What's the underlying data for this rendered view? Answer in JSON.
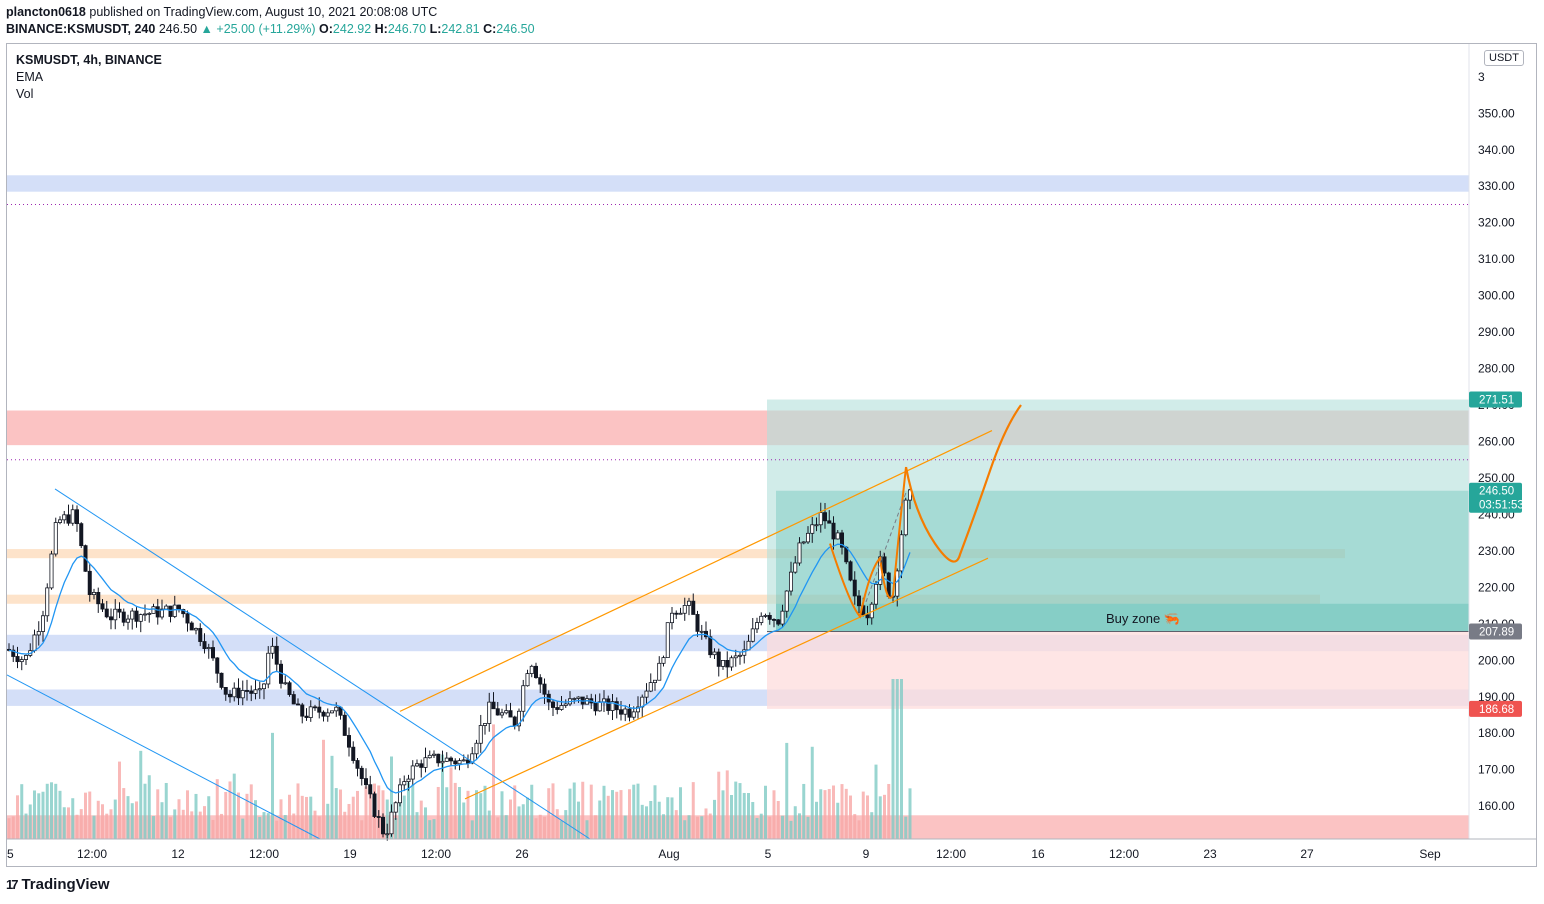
{
  "header": {
    "author": "plancton0618",
    "published": "published on TradingView.com, August 10, 2021 20:08:08 UTC",
    "symbol_line": "BINANCE:KSMUSDT, 240",
    "last": "246.50",
    "change": "▲ +25.00 (+11.29%)",
    "o_label": "O:",
    "o_value": "242.92",
    "h_label": "H:",
    "h_value": "246.70",
    "l_label": "L:",
    "l_value": "242.81",
    "c_label": "C:",
    "c_value": "246.50"
  },
  "legend": {
    "title": "KSMUSDT, 4h, BINANCE",
    "ema": "EMA",
    "vol": "Vol"
  },
  "currency": "USDT",
  "branding": "TradingView",
  "annotation": "Buy zone 🦐",
  "colors": {
    "up": "#26a69a",
    "down": "#ef5350",
    "ema": "#2196f3",
    "channel": "#ff9800",
    "projection": "#f57c00",
    "blue_zone": "#cfdcf7",
    "orange_zone": "#fde0c4",
    "red_zone": "#fbbcbc",
    "target_zone": "#b2dfdb",
    "stop_zone": "#fddcdc"
  },
  "chart_data": {
    "type": "candlestick",
    "ylim": [
      151,
      369
    ],
    "y_ticks": [
      "160.00",
      "170.00",
      "180.00",
      "190.00",
      "200.00",
      "210.00",
      "220.00",
      "230.00",
      "240.00",
      "250.00",
      "260.00",
      "270.00",
      "280.00",
      "290.00",
      "300.00",
      "310.00",
      "320.00",
      "330.00",
      "340.00",
      "350.00",
      "3"
    ],
    "x_ticks": [
      "5",
      "12:00",
      "12",
      "12:00",
      "19",
      "12:00",
      "26",
      "Aug",
      "5",
      "9",
      "12:00",
      "16",
      "12:00",
      "23",
      "27",
      "Sep"
    ],
    "price_labels": [
      {
        "text": "271.51",
        "value": 271.51,
        "color": "#26a69a"
      },
      {
        "text": "246.50",
        "value": 246.5,
        "sub": "03:51:53",
        "color": "#26a69a"
      },
      {
        "text": "207.89",
        "value": 207.89,
        "color": "#787b86"
      },
      {
        "text": "186.68",
        "value": 186.68,
        "color": "#ef5350"
      }
    ],
    "zones": [
      {
        "name": "blue-zone-top",
        "low": 328.5,
        "high": 333,
        "color": "#cfdcf7"
      },
      {
        "name": "red-zone-resistance",
        "low": 259,
        "high": 268.5,
        "color": "#fbbcbc"
      },
      {
        "name": "orange-zone-upper",
        "low": 228,
        "high": 230.5,
        "color": "#fde0c4"
      },
      {
        "name": "orange-zone-lower",
        "low": 215.5,
        "high": 218,
        "color": "#fde0c4"
      },
      {
        "name": "blue-zone-mid",
        "low": 202.5,
        "high": 207,
        "color": "#cfdcf7"
      },
      {
        "name": "blue-zone-low",
        "low": 187.5,
        "high": 192,
        "color": "#cfdcf7"
      },
      {
        "name": "red-zone-bottom",
        "low": 151,
        "high": 157.5,
        "color": "#fbbcbc"
      }
    ],
    "dotted_levels": [
      325,
      255
    ],
    "position": {
      "entry": 207.89,
      "target": 271.51,
      "stop": 186.68,
      "current": 246.5
    }
  }
}
